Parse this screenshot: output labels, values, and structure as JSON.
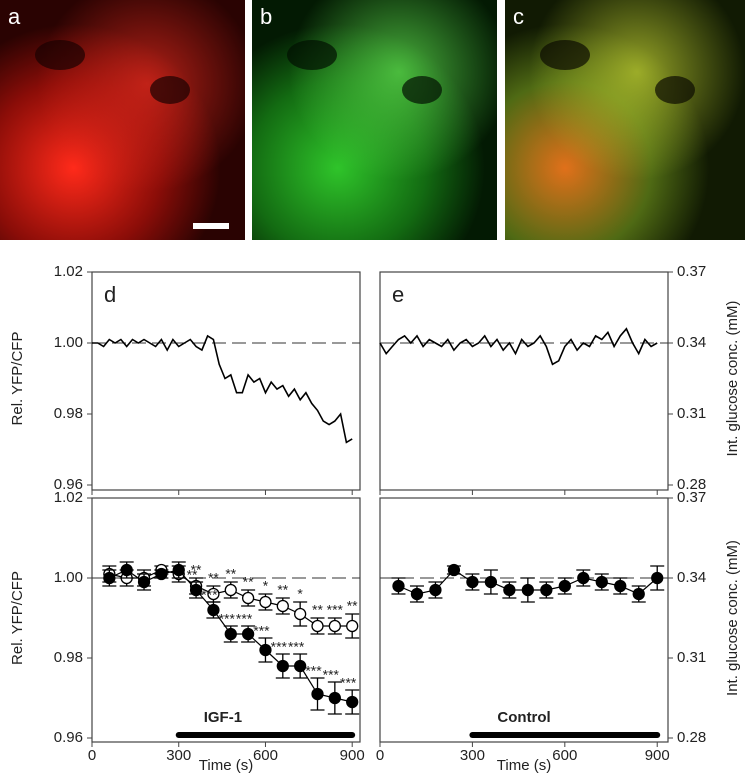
{
  "images": [
    {
      "label": "a"
    },
    {
      "label": "b"
    },
    {
      "label": "c"
    }
  ],
  "chart_data": [
    {
      "type": "line",
      "panel": "d",
      "y_label": "Rel. YFP/CFP",
      "x": [
        0,
        20,
        40,
        60,
        80,
        100,
        120,
        140,
        160,
        180,
        200,
        220,
        240,
        260,
        280,
        300,
        320,
        340,
        360,
        380,
        400,
        420,
        440,
        460,
        480,
        500,
        520,
        540,
        560,
        580,
        600,
        620,
        640,
        660,
        680,
        700,
        720,
        740,
        760,
        780,
        800,
        820,
        840,
        860,
        880,
        900
      ],
      "series": [
        {
          "color": "#000000",
          "values": [
            1.0,
            1.0,
            0.999,
            1.001,
            1.0,
            1.001,
            0.999,
            1.001,
            1.0,
            1.001,
            1.0,
            0.999,
            1.001,
            0.998,
            1.001,
            0.999,
            1.0,
            1.001,
            0.999,
            0.998,
            1.002,
            1.001,
            0.994,
            0.99,
            0.991,
            0.986,
            0.986,
            0.991,
            0.989,
            0.99,
            0.986,
            0.989,
            0.987,
            0.988,
            0.985,
            0.987,
            0.984,
            0.986,
            0.983,
            0.981,
            0.978,
            0.977,
            0.978,
            0.98,
            0.972,
            0.973
          ]
        }
      ],
      "xlim": [
        0,
        927
      ],
      "xticks": [
        0,
        300,
        600,
        900
      ],
      "xtick_labels": false,
      "ylim": [
        0.96,
        1.02
      ],
      "yticks": [
        0.96,
        0.98,
        {
          "value": 1,
          "label": "1.00"
        },
        1.02
      ],
      "reference_line": 1
    },
    {
      "type": "line",
      "panel": "e",
      "y2_label": "Int. glucose conc. (mM)",
      "x": [
        0,
        20,
        40,
        60,
        80,
        100,
        120,
        140,
        160,
        180,
        200,
        220,
        240,
        260,
        280,
        300,
        320,
        340,
        360,
        380,
        400,
        420,
        440,
        460,
        480,
        500,
        520,
        540,
        560,
        580,
        600,
        620,
        640,
        660,
        680,
        700,
        720,
        740,
        760,
        780,
        800,
        820,
        840,
        860,
        880,
        900
      ],
      "series": [
        {
          "color": "#000000",
          "values": [
            1.0,
            0.997,
            0.999,
            1.001,
            1.002,
            1.0,
            1.002,
            0.999,
            1.001,
            1.0,
            0.999,
            1.001,
            0.998,
            1.0,
            1.001,
            0.999,
            1.0,
            1.002,
            0.999,
            1.001,
            0.998,
            1.0,
            0.997,
            1.001,
            0.999,
            1.0,
            1.002,
            0.999,
            0.994,
            0.995,
            0.999,
            1.001,
            0.998,
            1.0,
            0.999,
            1.002,
            1.001,
            1.003,
            0.999,
            1.002,
            1.004,
            1.0,
            0.997,
            1.001,
            0.999,
            1.0
          ]
        }
      ],
      "xlim": [
        0,
        935
      ],
      "xticks": [
        0,
        300,
        600,
        900
      ],
      "xtick_labels": false,
      "ylim": [
        0.96,
        1.02
      ],
      "y2lim": [
        0.28,
        0.37
      ],
      "y2ticks": [
        0.28,
        0.31,
        0.34,
        0.37
      ],
      "reference_line": 1
    },
    {
      "type": "errorbar",
      "panel": "",
      "y_label": "Rel. YFP/CFP",
      "x_label": "Time (s)",
      "x": [
        60,
        120,
        180,
        240,
        300,
        360,
        420,
        480,
        540,
        600,
        660,
        720,
        780,
        840,
        900
      ],
      "series": [
        {
          "marker": "open",
          "color": "#000000",
          "values": [
            1.001,
            1.0,
            1.0,
            1.002,
            1.001,
            0.998,
            0.996,
            0.997,
            0.995,
            0.994,
            0.993,
            0.991,
            0.988,
            0.988,
            0.988
          ],
          "errors": [
            0.002,
            0.002,
            0.002,
            0.001,
            0.002,
            0.002,
            0.002,
            0.002,
            0.002,
            0.002,
            0.002,
            0.003,
            0.002,
            0.002,
            0.003
          ],
          "significance": [
            null,
            null,
            null,
            null,
            null,
            "**",
            "**",
            "**",
            "**",
            "*",
            "**",
            "*",
            "**",
            "***",
            "**"
          ]
        },
        {
          "marker": "filled",
          "color": "#000000",
          "values": [
            1.0,
            1.002,
            0.999,
            1.001,
            1.002,
            0.997,
            0.992,
            0.986,
            0.986,
            0.982,
            0.978,
            0.978,
            0.971,
            0.97,
            0.969
          ],
          "errors": [
            0.002,
            0.002,
            0.002,
            0.001,
            0.002,
            0.002,
            0.002,
            0.002,
            0.002,
            0.003,
            0.003,
            0.003,
            0.004,
            0.004,
            0.003
          ],
          "significance": [
            null,
            null,
            null,
            null,
            null,
            "**",
            "***",
            "***",
            "***",
            "***",
            "***",
            "***",
            "***",
            "***",
            "***"
          ]
        }
      ],
      "treatment": {
        "label": "IGF-1",
        "start": 300,
        "end": 900
      },
      "xlim": [
        0,
        927
      ],
      "xticks": [
        0,
        300,
        600,
        900
      ],
      "ylim": [
        0.96,
        1.02
      ],
      "yticks": [
        0.96,
        0.98,
        {
          "value": 1,
          "label": "1.00"
        },
        1.02
      ],
      "reference_line": 1
    },
    {
      "type": "errorbar",
      "y2_label": "Int. glucose conc. (mM)",
      "x_label": "Time (s)",
      "x": [
        60,
        120,
        180,
        240,
        300,
        360,
        420,
        480,
        540,
        600,
        660,
        720,
        780,
        840,
        900
      ],
      "series": [
        {
          "marker": "filled",
          "color": "#000000",
          "values": [
            0.998,
            0.996,
            0.997,
            1.002,
            0.999,
            0.999,
            0.997,
            0.997,
            0.997,
            0.998,
            1.0,
            0.999,
            0.998,
            0.996,
            1.0
          ],
          "errors": [
            0.002,
            0.002,
            0.002,
            0.001,
            0.002,
            0.003,
            0.002,
            0.003,
            0.002,
            0.002,
            0.002,
            0.002,
            0.002,
            0.002,
            0.003
          ]
        }
      ],
      "treatment": {
        "label": "Control",
        "start": 300,
        "end": 900
      },
      "xlim": [
        0,
        935
      ],
      "xticks": [
        0,
        300,
        600,
        900
      ],
      "ylim": [
        0.96,
        1.02
      ],
      "y2lim": [
        0.28,
        0.37
      ],
      "y2ticks": [
        0.28,
        0.31,
        0.34,
        0.37
      ],
      "reference_line": 1
    }
  ]
}
